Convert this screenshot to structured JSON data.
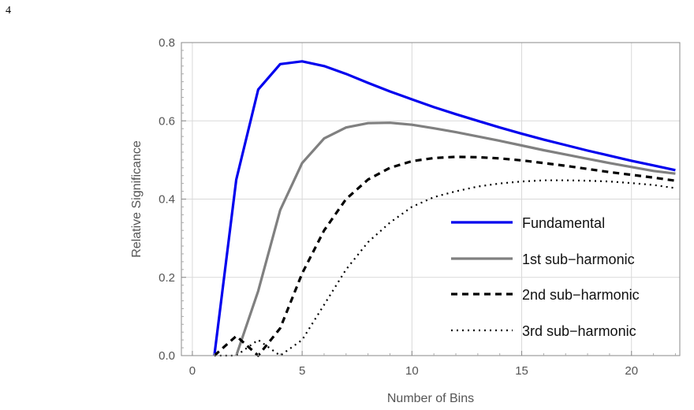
{
  "page_number": "4",
  "chart_data": {
    "type": "line",
    "title": "",
    "xlabel": "Number of Bins",
    "ylabel": "Relative Significance",
    "xlim": [
      -0.5,
      22.2
    ],
    "ylim": [
      0,
      0.8
    ],
    "xticks": [
      0,
      5,
      10,
      15,
      20
    ],
    "yticks": [
      0.0,
      0.2,
      0.4,
      0.6,
      0.8
    ],
    "xtick_labels": [
      "0",
      "5",
      "10",
      "15",
      "20"
    ],
    "ytick_labels": [
      "0.0",
      "0.2",
      "0.4",
      "0.6",
      "0.8"
    ],
    "grid": true,
    "legend_position": "bottom-right",
    "series": [
      {
        "name": "Fundamental",
        "color": "#0000ee",
        "style": "solid",
        "x": [
          1,
          2,
          3,
          4,
          5,
          6,
          7,
          8,
          9,
          10,
          11,
          12,
          13,
          14,
          15,
          16,
          17,
          18,
          19,
          20,
          21,
          22
        ],
        "y": [
          0.0,
          0.45,
          0.68,
          0.745,
          0.752,
          0.74,
          0.72,
          0.697,
          0.675,
          0.655,
          0.635,
          0.617,
          0.6,
          0.583,
          0.567,
          0.552,
          0.538,
          0.524,
          0.511,
          0.498,
          0.486,
          0.474
        ]
      },
      {
        "name": "1st sub−harmonic",
        "color": "#808080",
        "style": "solid",
        "x": [
          2,
          3,
          4,
          5,
          6,
          7,
          8,
          9,
          10,
          11,
          12,
          13,
          14,
          15,
          16,
          17,
          18,
          19,
          20,
          21,
          22
        ],
        "y": [
          0.0,
          0.165,
          0.372,
          0.492,
          0.555,
          0.583,
          0.594,
          0.595,
          0.59,
          0.581,
          0.571,
          0.56,
          0.549,
          0.537,
          0.525,
          0.514,
          0.503,
          0.492,
          0.482,
          0.472,
          0.465
        ]
      },
      {
        "name": "2nd sub−harmonic",
        "color": "#000000",
        "style": "dashed",
        "x": [
          1,
          2,
          3,
          4,
          5,
          6,
          7,
          8,
          9,
          10,
          11,
          12,
          13,
          14,
          15,
          16,
          17,
          18,
          19,
          20,
          21,
          22
        ],
        "y": [
          0.0,
          0.05,
          0.0,
          0.07,
          0.21,
          0.32,
          0.4,
          0.45,
          0.48,
          0.497,
          0.505,
          0.508,
          0.507,
          0.504,
          0.499,
          0.492,
          0.485,
          0.477,
          0.469,
          0.462,
          0.455,
          0.447
        ]
      },
      {
        "name": "3rd sub−harmonic",
        "color": "#000000",
        "style": "dotted",
        "x": [
          1,
          2,
          3,
          4,
          5,
          6,
          7,
          8,
          9,
          10,
          11,
          12,
          13,
          14,
          15,
          16,
          17,
          18,
          19,
          20,
          21,
          22
        ],
        "y": [
          0.0,
          0.0,
          0.04,
          0.0,
          0.04,
          0.13,
          0.22,
          0.29,
          0.34,
          0.38,
          0.405,
          0.42,
          0.432,
          0.44,
          0.445,
          0.448,
          0.448,
          0.447,
          0.445,
          0.441,
          0.436,
          0.428
        ]
      }
    ]
  }
}
